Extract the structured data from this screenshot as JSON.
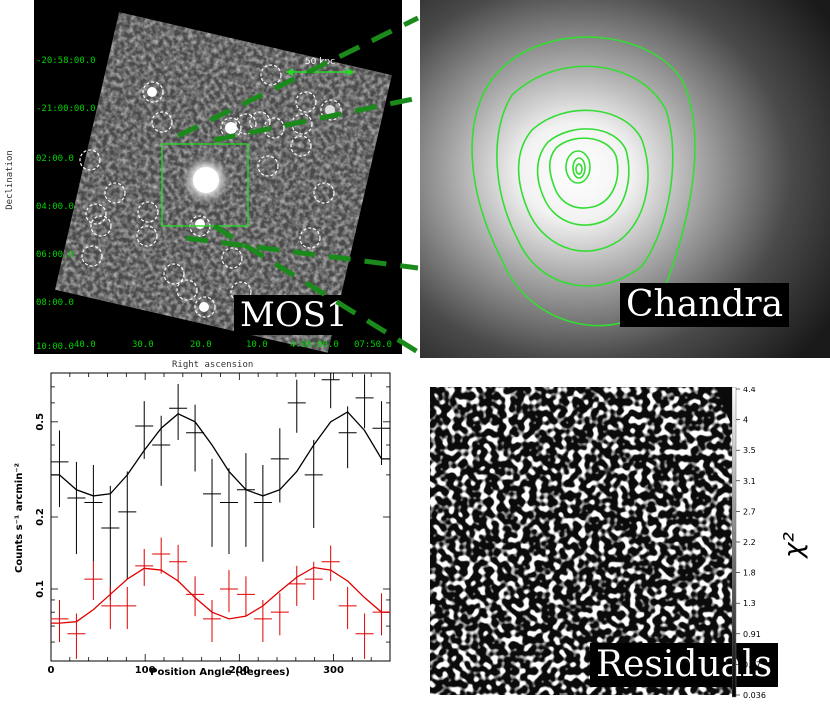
{
  "mos1": {
    "label": "MOS1",
    "scale_bar": "50 kpc",
    "dec_ticks": [
      "-20:58:00.0",
      "-21:00:00.0",
      "02:00.0",
      "04:00.0",
      "06:00.0",
      "08:00.0",
      "10:00.0"
    ],
    "ra_ticks": [
      "40.0",
      "30.0",
      "20.0",
      "10.0",
      "4:08:00.0",
      "07:50.0"
    ],
    "ylabel": "Declination",
    "xlabel": "Right ascension"
  },
  "chandra": {
    "label": "Chandra"
  },
  "residuals": {
    "label": "Residuals",
    "colorbar_ticks": [
      "4.4",
      "4",
      "3.5",
      "3.1",
      "2.7",
      "2.2",
      "1.8",
      "1.3",
      "0.91",
      "0.47",
      "0.036"
    ],
    "colorbar_label": "χ²"
  },
  "chart_data": {
    "type": "scatter",
    "xlabel": "Position Angle (degrees)",
    "ylabel": "Counts s⁻¹ arcmin⁻²",
    "xlim": [
      0,
      360
    ],
    "ylim": [
      0.05,
      0.8
    ],
    "yscale": "log",
    "x_ticks": [
      "0",
      "100",
      "200",
      "300"
    ],
    "y_ticks": [
      "0.1",
      "0.2",
      "0.5"
    ],
    "colors": {
      "series1": "#000000",
      "series2": "#e00000"
    },
    "series": [
      {
        "x": [
          9,
          27,
          45,
          63,
          81,
          99,
          117,
          135,
          153,
          171,
          189,
          207,
          225,
          243,
          261,
          279,
          297,
          315,
          333,
          351
        ],
        "y": [
          0.34,
          0.24,
          0.23,
          0.18,
          0.21,
          0.48,
          0.4,
          0.57,
          0.45,
          0.25,
          0.23,
          0.26,
          0.23,
          0.35,
          0.6,
          0.3,
          0.75,
          0.45,
          0.63,
          0.47
        ],
        "yerr": [
          0.12,
          0.1,
          0.1,
          0.09,
          0.1,
          0.13,
          0.13,
          0.15,
          0.14,
          0.1,
          0.09,
          0.11,
          0.1,
          0.12,
          0.15,
          0.12,
          0.18,
          0.13,
          0.16,
          0.14
        ],
        "model": [
          0.3,
          0.26,
          0.245,
          0.25,
          0.3,
          0.38,
          0.47,
          0.54,
          0.5,
          0.4,
          0.31,
          0.26,
          0.245,
          0.26,
          0.31,
          0.4,
          0.5,
          0.55,
          0.46,
          0.35
        ]
      },
      {
        "x": [
          9,
          27,
          45,
          63,
          81,
          99,
          117,
          135,
          153,
          171,
          189,
          207,
          225,
          243,
          261,
          279,
          297,
          315,
          333,
          351
        ],
        "y": [
          0.075,
          0.065,
          0.11,
          0.085,
          0.085,
          0.125,
          0.14,
          0.13,
          0.095,
          0.075,
          0.1,
          0.095,
          0.075,
          0.08,
          0.105,
          0.11,
          0.13,
          0.085,
          0.065,
          0.08
        ],
        "yerr": [
          0.015,
          0.014,
          0.02,
          0.017,
          0.017,
          0.022,
          0.024,
          0.023,
          0.018,
          0.015,
          0.02,
          0.018,
          0.015,
          0.016,
          0.02,
          0.02,
          0.022,
          0.017,
          0.014,
          0.016
        ],
        "model": [
          0.072,
          0.073,
          0.082,
          0.095,
          0.11,
          0.122,
          0.12,
          0.108,
          0.092,
          0.08,
          0.075,
          0.077,
          0.085,
          0.098,
          0.112,
          0.123,
          0.12,
          0.108,
          0.092,
          0.08
        ]
      }
    ]
  }
}
